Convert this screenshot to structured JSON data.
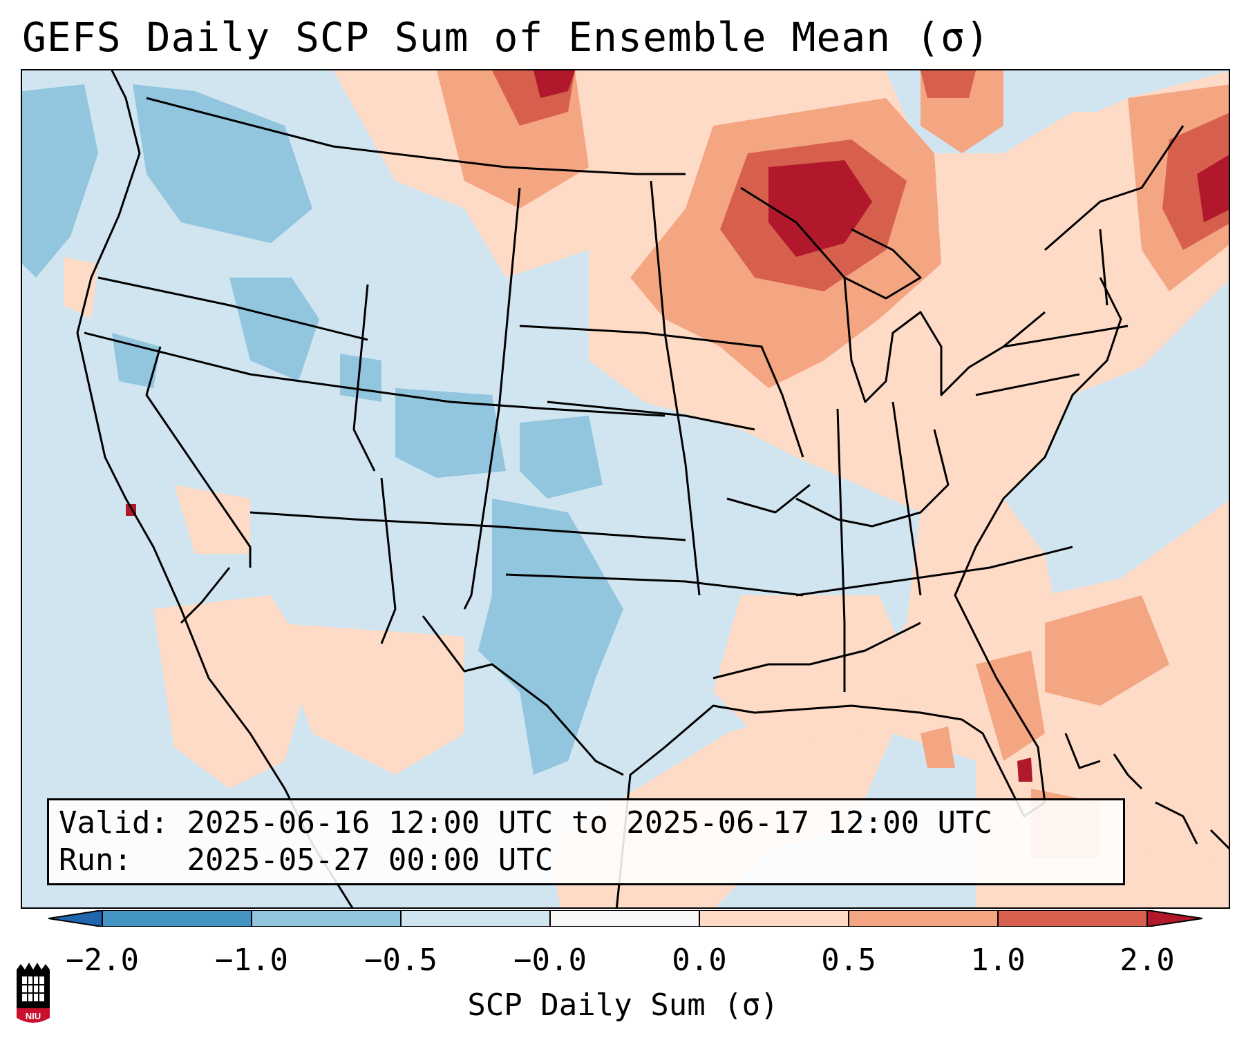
{
  "title": "GEFS Daily SCP Sum of Ensemble Mean (σ)",
  "info": {
    "valid_label": "Valid:",
    "valid_value": "2025-06-16 12:00 UTC to 2025-06-17 12:00 UTC",
    "run_label": "Run:",
    "run_value": "2025-05-27 00:00 UTC"
  },
  "colorbar": {
    "label": "SCP Daily Sum (σ)",
    "ticks": [
      "−2.0",
      "−1.0",
      "−0.5",
      "−0.0",
      "0.0",
      "0.5",
      "1.0",
      "2.0"
    ],
    "colors": [
      "#4393c3",
      "#92c5de",
      "#d1e5f0",
      "#f7f7f7",
      "#fddbc7",
      "#f4a582",
      "#d6604d",
      "#b2182b"
    ],
    "extend_low_color": "#2166ac",
    "extend_high_color": "#b2182b"
  },
  "map": {
    "region": "Contiguous United States",
    "background_category": "light-blue",
    "hotspots": [
      "Upper Great Lakes / Ontario",
      "Northern Maine / New Brunswick",
      "Southern Florida"
    ]
  },
  "logo": {
    "text": "NIU"
  }
}
